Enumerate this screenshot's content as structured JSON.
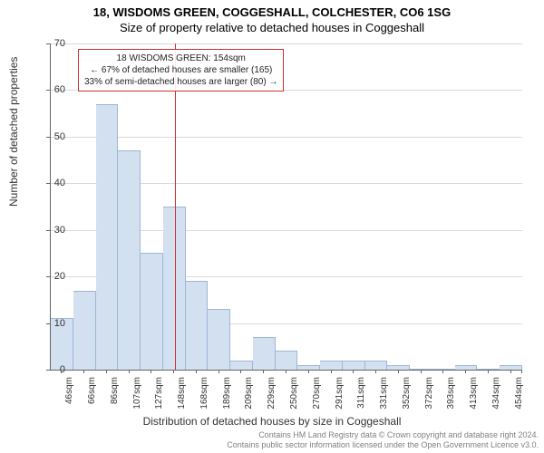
{
  "title_line1": "18, WISDOMS GREEN, COGGESHALL, COLCHESTER, CO6 1SG",
  "title_line2": "Size of property relative to detached houses in Coggeshall",
  "ylabel": "Number of detached properties",
  "xlabel": "Distribution of detached houses by size in Coggeshall",
  "footer_line1": "Contains HM Land Registry data © Crown copyright and database right 2024.",
  "footer_line2": "Contains public sector information licensed under the Open Government Licence v3.0.",
  "chart": {
    "type": "histogram",
    "background": "#ffffff",
    "grid_color": "#d9d9e0",
    "axis_color": "#666666",
    "bar_fill": "#d2e0f0",
    "bar_stroke": "#9db7d6",
    "ylim": [
      0,
      70
    ],
    "ytick_step": 10,
    "xtick_labels": [
      "46sqm",
      "66sqm",
      "86sqm",
      "107sqm",
      "127sqm",
      "148sqm",
      "168sqm",
      "189sqm",
      "209sqm",
      "229sqm",
      "250sqm",
      "270sqm",
      "291sqm",
      "311sqm",
      "331sqm",
      "352sqm",
      "372sqm",
      "393sqm",
      "413sqm",
      "434sqm",
      "454sqm"
    ],
    "bar_values": [
      11,
      17,
      57,
      47,
      25,
      35,
      19,
      13,
      2,
      7,
      4,
      1,
      2,
      2,
      2,
      1,
      0,
      0,
      1,
      0,
      1
    ],
    "bar_count": 21,
    "reference_line_index": 5.55,
    "reference_line_color": "#cc3333",
    "annotation": {
      "border_color": "#cc3333",
      "line1": "18 WISDOMS GREEN: 154sqm",
      "line2": "← 67% of detached houses are smaller (165)",
      "line3": "33% of semi-detached houses are larger (80) →"
    }
  }
}
